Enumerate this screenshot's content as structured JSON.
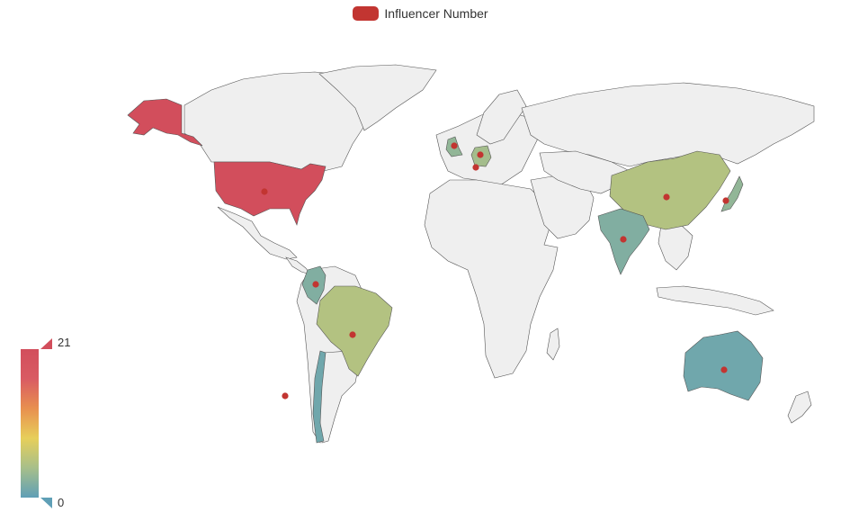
{
  "chart_data": {
    "type": "map",
    "legend": {
      "label": "Influencer Number",
      "color": "#c23531"
    },
    "visual_map": {
      "min": 0,
      "max": 21,
      "min_label": "0",
      "max_label": "21",
      "colors": [
        "#5f9fb6",
        "#a7bf8a",
        "#e7cf5a",
        "#e8904f",
        "#d95b63",
        "#d24e5c"
      ]
    },
    "map_colors": {
      "empty": "#efefef",
      "border": "#555555",
      "point": "#c23531"
    },
    "series": [
      {
        "name": "United States",
        "value": 21,
        "has_point": true
      },
      {
        "name": "Alaska",
        "value": 21,
        "has_point": false
      },
      {
        "name": "Colombia",
        "value": 2,
        "has_point": true
      },
      {
        "name": "Brazil",
        "value": 5,
        "has_point": true
      },
      {
        "name": "Chile",
        "value": 1,
        "has_point": false
      },
      {
        "name": "United Kingdom",
        "value": 3,
        "has_point": true
      },
      {
        "name": "Germany",
        "value": 4,
        "has_point": true
      },
      {
        "name": "Italy",
        "value": null,
        "has_point": true
      },
      {
        "name": "China",
        "value": 5,
        "has_point": true
      },
      {
        "name": "India",
        "value": 2,
        "has_point": true
      },
      {
        "name": "Japan",
        "value": 3,
        "has_point": true
      },
      {
        "name": "Australia",
        "value": 1,
        "has_point": true
      },
      {
        "name": "Pacific island",
        "value": null,
        "has_point": true
      }
    ]
  }
}
